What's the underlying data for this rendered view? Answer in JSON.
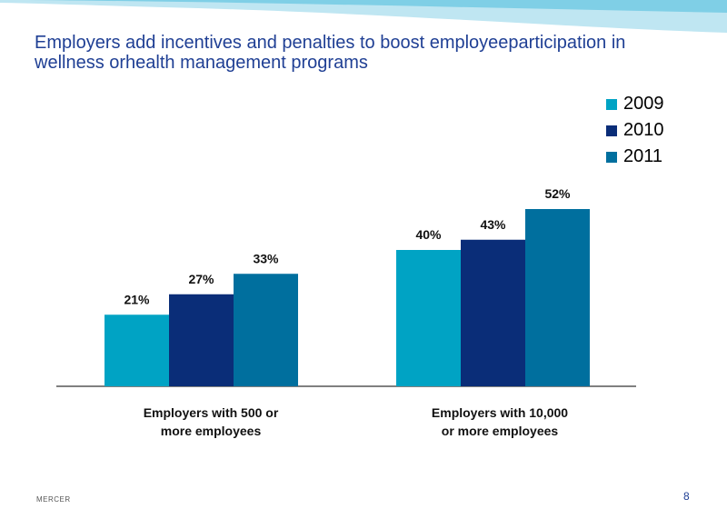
{
  "slide": {
    "title_line1": "Employers add incentives and penalties to boost employeeparticipation in",
    "title_line2": "wellness orhealth management programs",
    "footer_brand": "MERCER",
    "page_number": "8"
  },
  "colors": {
    "title": "#1f3f94",
    "wave": "#bfe6f2",
    "wave_dark": "#7fcfe6"
  },
  "chart_data": {
    "type": "bar",
    "categories": [
      "Employers with 500 or more employees",
      "Employers with 10,000 or more employees"
    ],
    "category_lines": [
      [
        "Employers with 500 or",
        "more employees"
      ],
      [
        "Employers with 10,000",
        "or more employees"
      ]
    ],
    "series": [
      {
        "name": "2009",
        "values": [
          21,
          40
        ],
        "labels": [
          "21%",
          "40%"
        ],
        "color": "#00a3c4"
      },
      {
        "name": "2010",
        "values": [
          27,
          43
        ],
        "labels": [
          "27%",
          "43%"
        ],
        "color": "#0a2d78"
      },
      {
        "name": "2011",
        "values": [
          33,
          52
        ],
        "labels": [
          "33%",
          "52%"
        ],
        "color": "#006f9e"
      }
    ],
    "unit": "%",
    "ylim": [
      0,
      60
    ],
    "grid": false,
    "legend_position": "top-right",
    "title": "",
    "xlabel": "",
    "ylabel": ""
  }
}
